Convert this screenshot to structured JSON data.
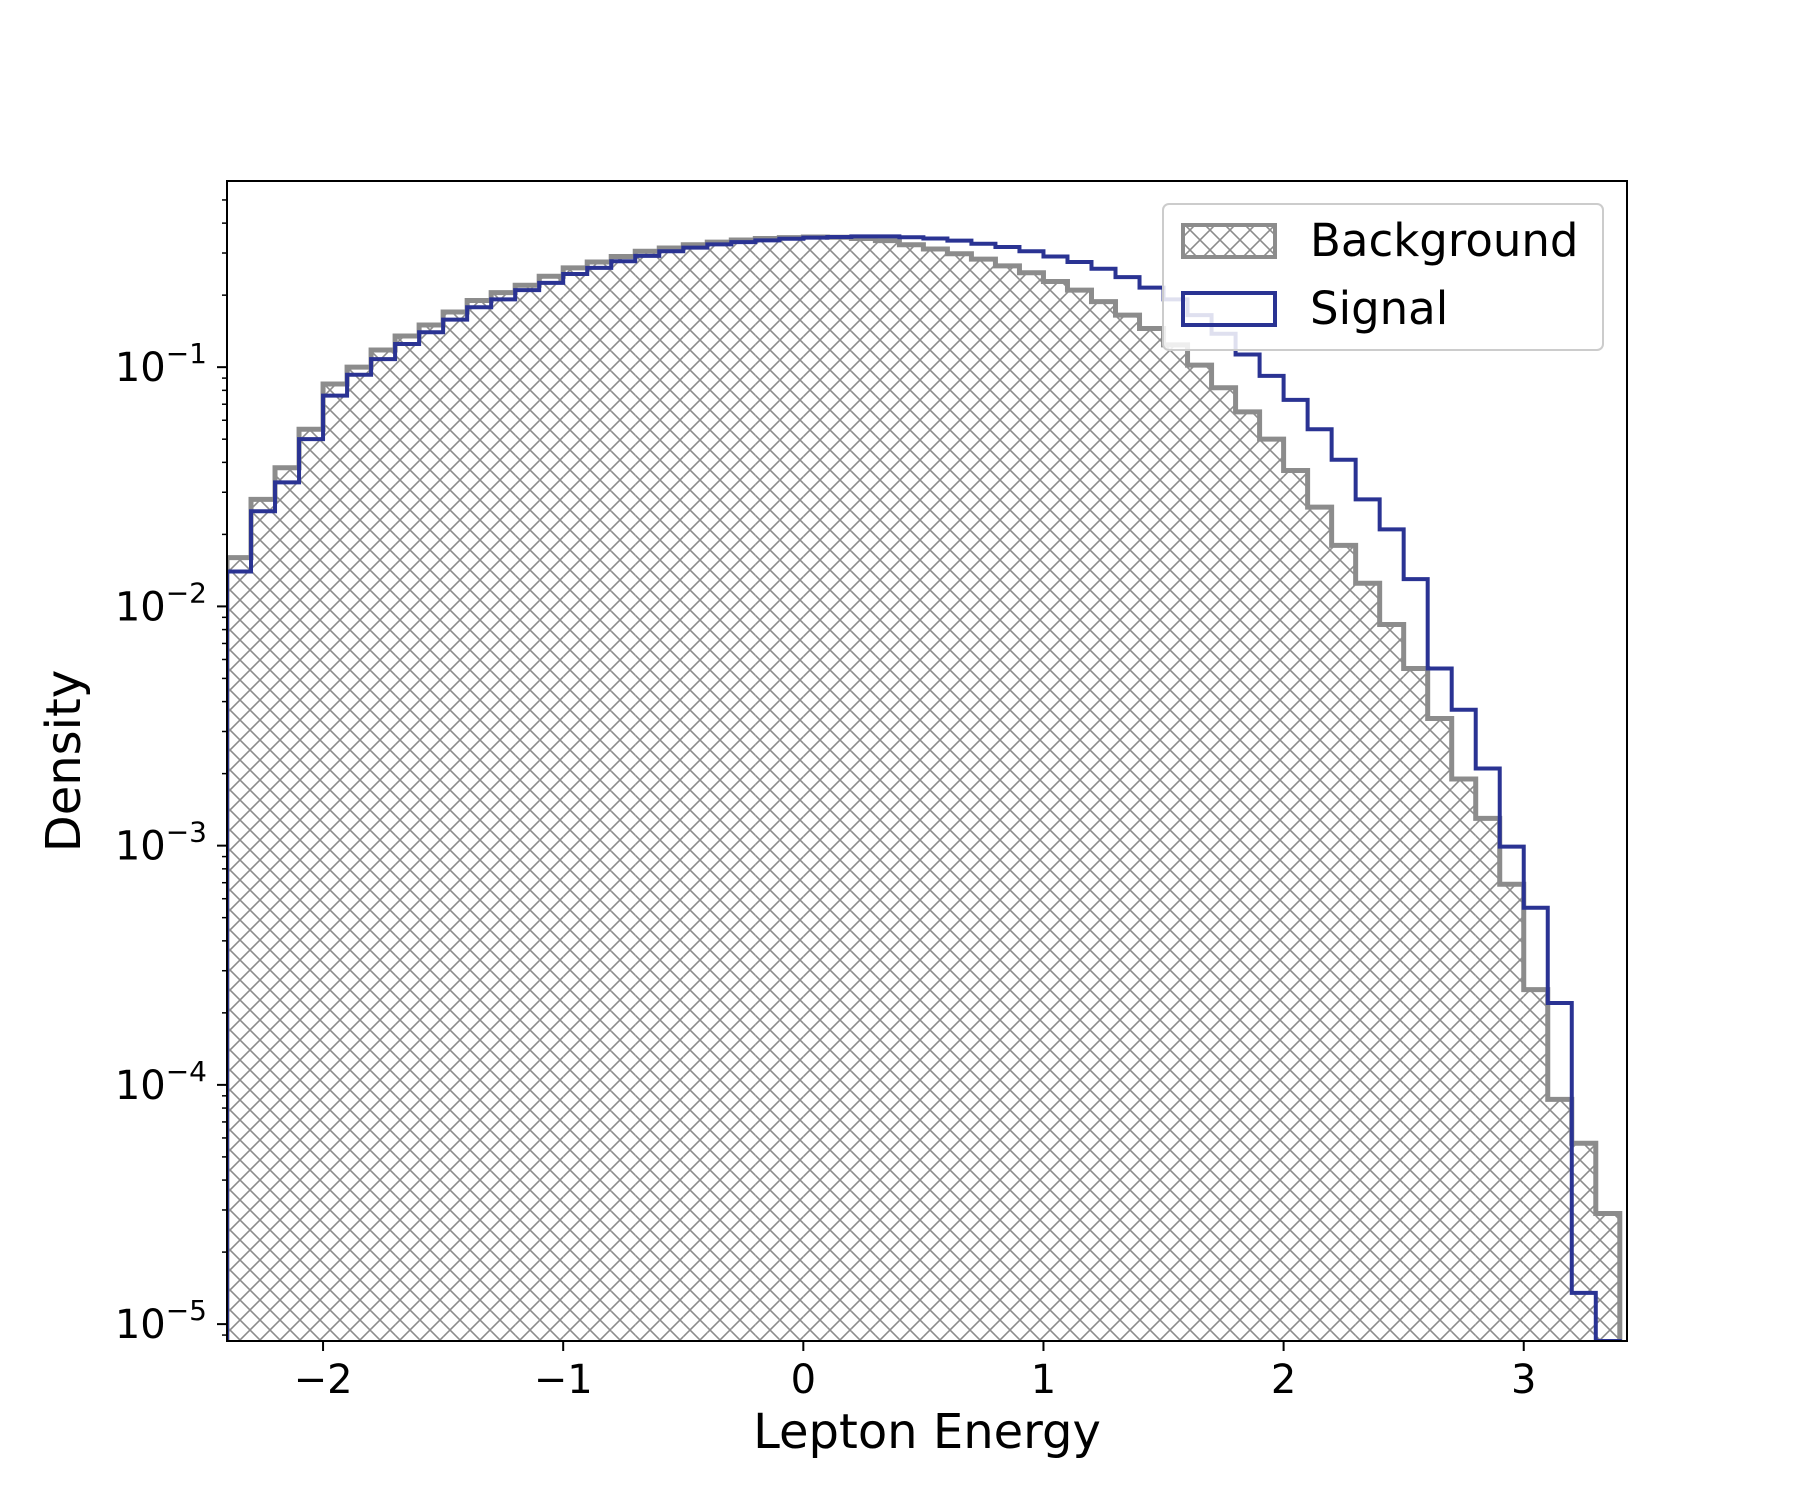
{
  "chart_data": {
    "type": "histogram",
    "xlabel": "Lepton Energy",
    "ylabel": "Density",
    "xlim": [
      -2.4,
      3.43
    ],
    "ylim": [
      8.5e-06,
      0.6
    ],
    "yscale": "log",
    "grid": false,
    "legend_position": "top-right",
    "x_ticks": [
      {
        "value": -2,
        "label": "−2"
      },
      {
        "value": -1,
        "label": "−1"
      },
      {
        "value": 0,
        "label": "0"
      },
      {
        "value": 1,
        "label": "1"
      },
      {
        "value": 2,
        "label": "2"
      },
      {
        "value": 3,
        "label": "3"
      }
    ],
    "y_ticks": [
      {
        "value": 0.1,
        "base": "10",
        "exp": "−1"
      },
      {
        "value": 0.01,
        "base": "10",
        "exp": "−2"
      },
      {
        "value": 0.001,
        "base": "10",
        "exp": "−3"
      },
      {
        "value": 0.0001,
        "base": "10",
        "exp": "−4"
      },
      {
        "value": 1e-05,
        "base": "10",
        "exp": "−5"
      }
    ],
    "bin_edges": [
      -2.4,
      -2.3,
      -2.2,
      -2.1,
      -2.0,
      -1.9,
      -1.8,
      -1.7,
      -1.6,
      -1.5,
      -1.4,
      -1.3,
      -1.2,
      -1.1,
      -1.0,
      -0.9,
      -0.8,
      -0.7,
      -0.6,
      -0.5,
      -0.4,
      -0.3,
      -0.2,
      -0.1,
      0.0,
      0.1,
      0.2,
      0.3,
      0.4,
      0.5,
      0.6,
      0.7,
      0.8,
      0.9,
      1.0,
      1.1,
      1.2,
      1.3,
      1.4,
      1.5,
      1.6,
      1.7,
      1.8,
      1.9,
      2.0,
      2.1,
      2.2,
      2.3,
      2.4,
      2.5,
      2.6,
      2.7,
      2.8,
      2.9,
      3.0,
      3.1,
      3.2,
      3.3,
      3.4
    ],
    "series": [
      {
        "name": "Background",
        "color": "#8c8c8c",
        "style": "hatched-fill",
        "values": [
          0.016,
          0.028,
          0.038,
          0.055,
          0.085,
          0.1,
          0.118,
          0.135,
          0.15,
          0.17,
          0.19,
          0.205,
          0.22,
          0.24,
          0.26,
          0.275,
          0.29,
          0.305,
          0.315,
          0.325,
          0.333,
          0.34,
          0.345,
          0.348,
          0.35,
          0.349,
          0.345,
          0.338,
          0.325,
          0.312,
          0.298,
          0.283,
          0.265,
          0.248,
          0.228,
          0.21,
          0.188,
          0.165,
          0.145,
          0.124,
          0.102,
          0.082,
          0.065,
          0.05,
          0.037,
          0.026,
          0.018,
          0.0125,
          0.0084,
          0.0055,
          0.0034,
          0.0019,
          0.0013,
          0.00069,
          0.00025,
          8.7e-05,
          5.7e-05,
          2.9e-05
        ]
      },
      {
        "name": "Signal",
        "color": "#2a3393",
        "style": "step",
        "values": [
          0.014,
          0.025,
          0.033,
          0.05,
          0.076,
          0.093,
          0.108,
          0.125,
          0.14,
          0.158,
          0.178,
          0.192,
          0.21,
          0.225,
          0.245,
          0.26,
          0.277,
          0.292,
          0.305,
          0.316,
          0.326,
          0.333,
          0.339,
          0.344,
          0.348,
          0.35,
          0.352,
          0.352,
          0.349,
          0.345,
          0.338,
          0.328,
          0.318,
          0.305,
          0.29,
          0.275,
          0.258,
          0.238,
          0.215,
          0.192,
          0.165,
          0.138,
          0.113,
          0.092,
          0.073,
          0.055,
          0.041,
          0.028,
          0.021,
          0.013,
          0.0055,
          0.0037,
          0.0021,
          0.00099,
          0.00055,
          0.00022,
          1.35e-05,
          8.5e-06
        ]
      }
    ]
  }
}
